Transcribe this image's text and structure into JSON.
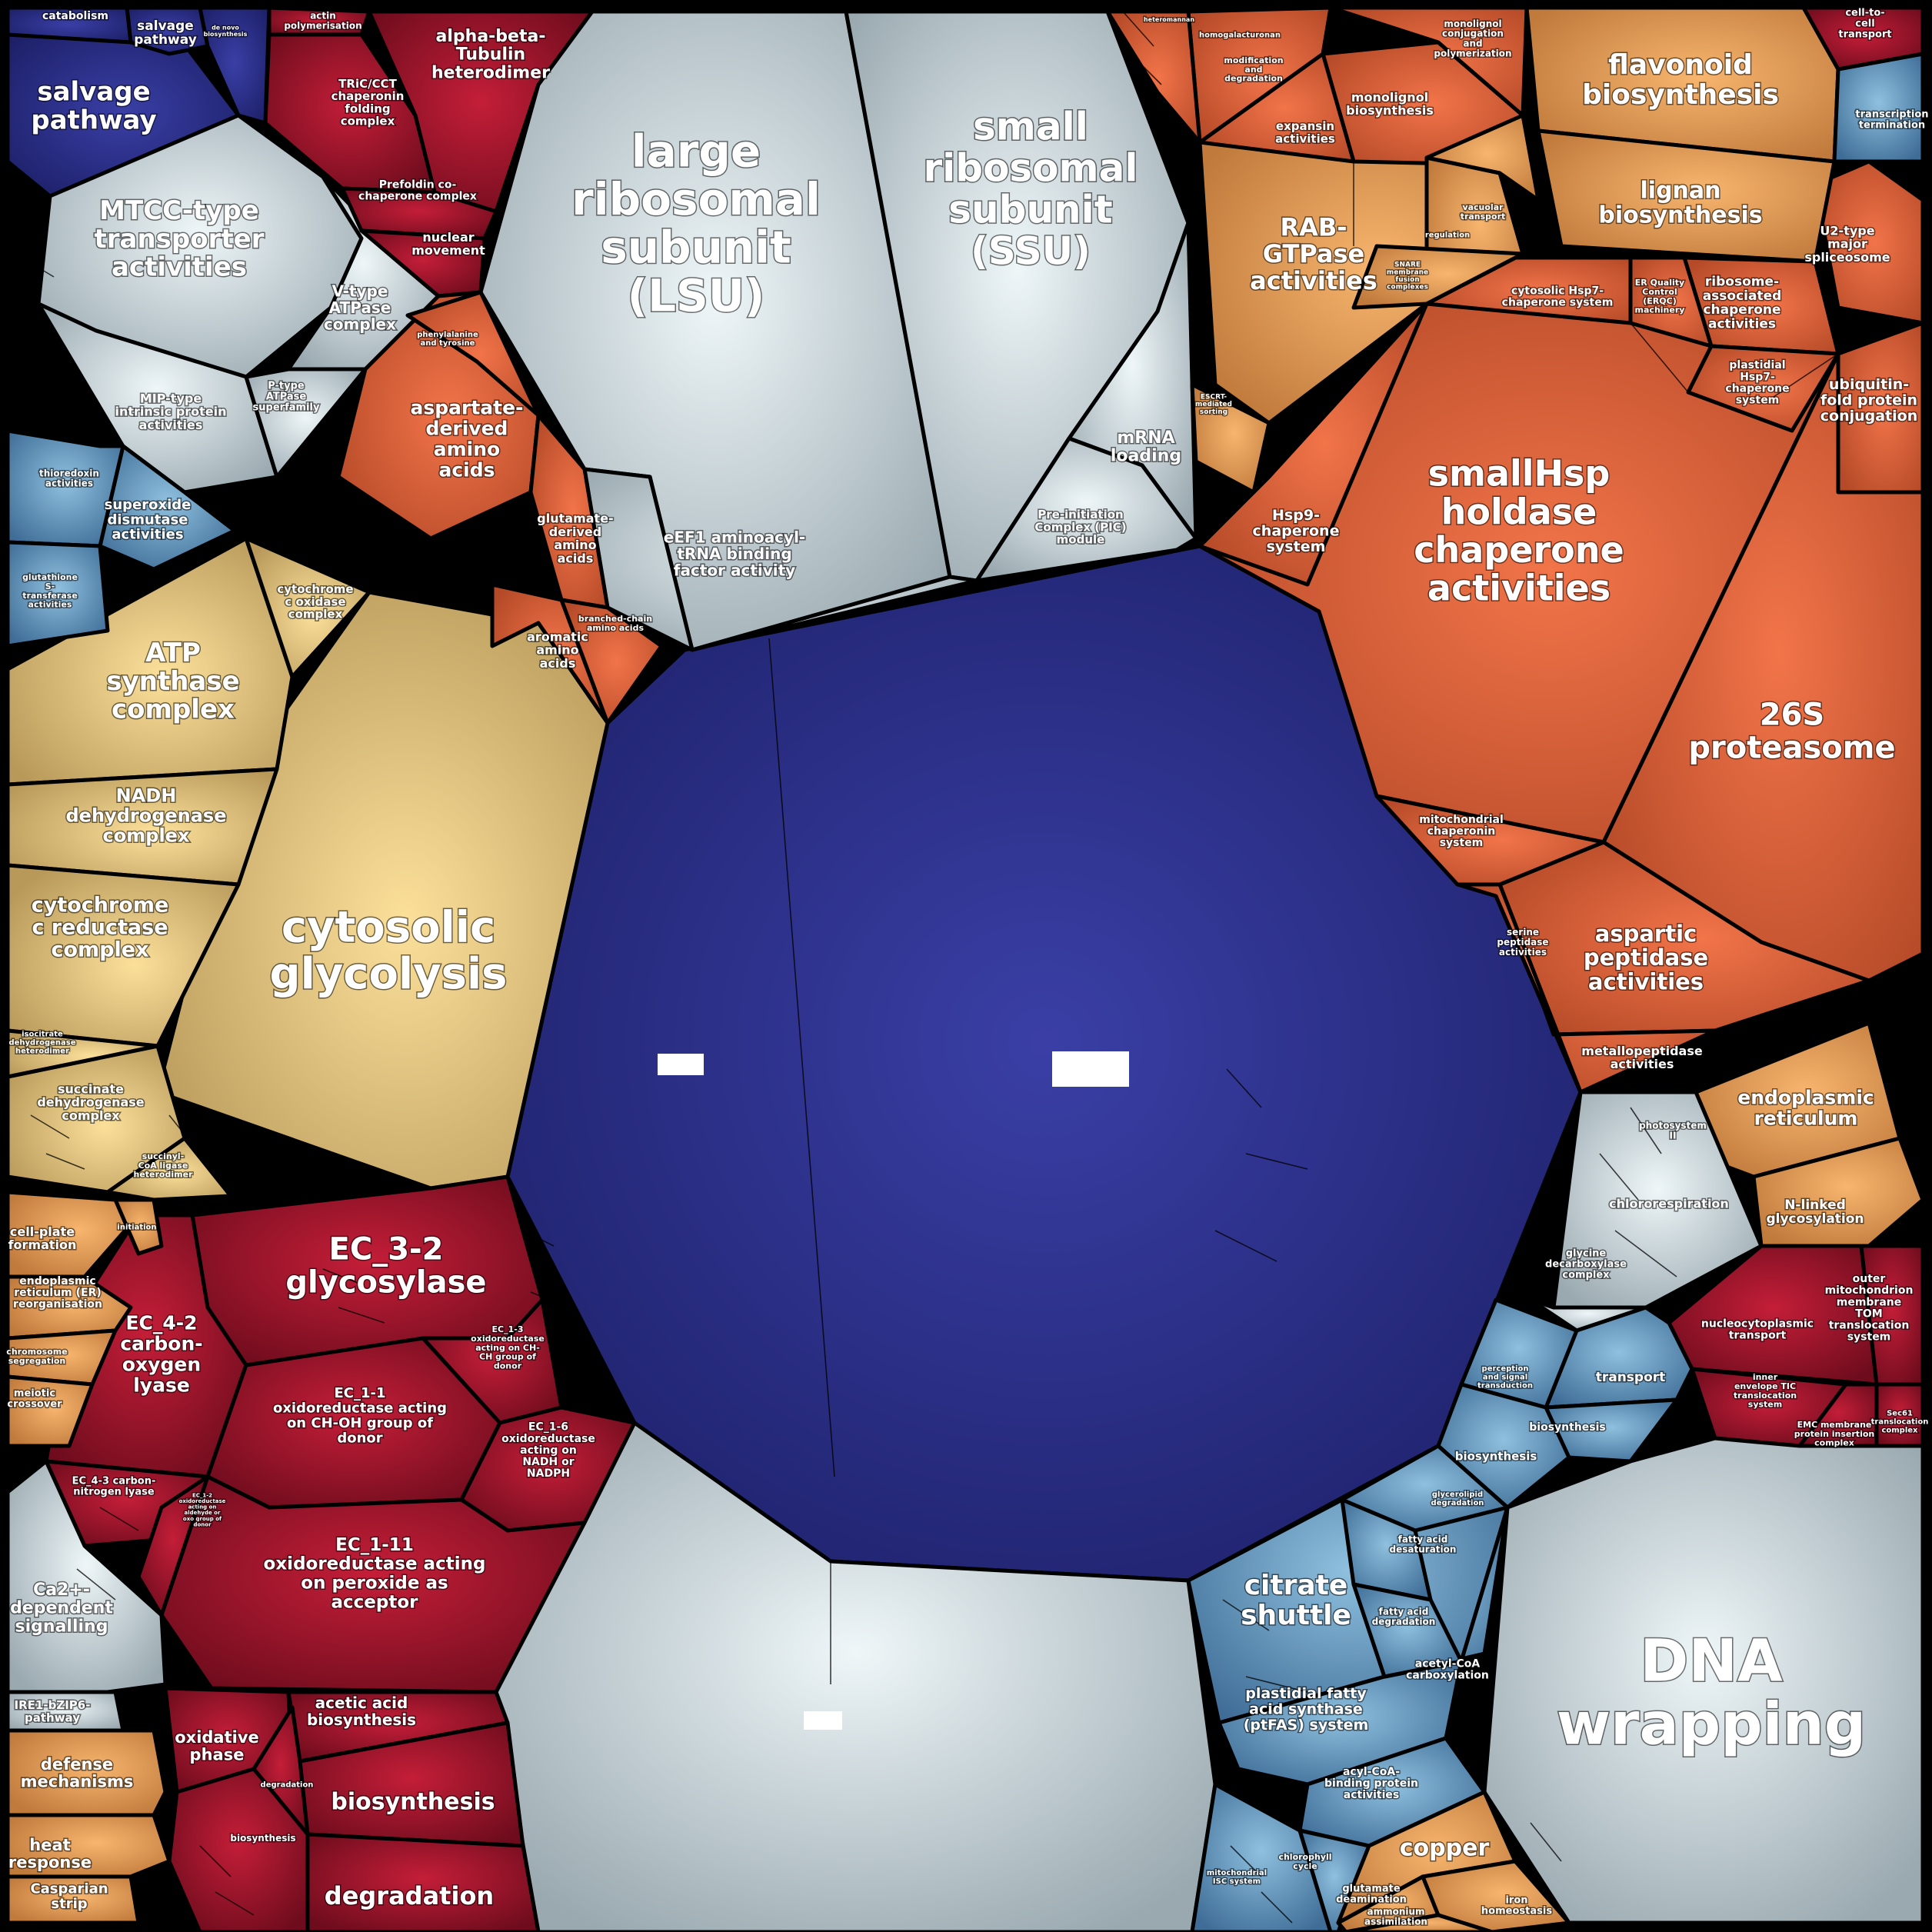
{
  "colors": {
    "navy": "#2b2f86",
    "crimson": "#a8132b",
    "orange": "#e0633c",
    "tan": "#e7a15c",
    "khaki": "#dfc27e",
    "silver": "#c9d7de",
    "steel": "#5d8db4"
  },
  "cells": [
    {
      "id": "center-blue",
      "color": "navy",
      "label": ""
    },
    {
      "id": "bottom-silver",
      "color": "silver",
      "label": ""
    },
    {
      "id": "lsu",
      "color": "silver",
      "label": "large ribosomal subunit (LSU)"
    },
    {
      "id": "ssu",
      "color": "silver",
      "label": "small ribosomal subunit (SSU)"
    },
    {
      "id": "mrna-loading",
      "color": "silver",
      "label": "mRNA loading"
    },
    {
      "id": "pic",
      "color": "silver",
      "label": "Pre-initiation Complex (PIC) module"
    },
    {
      "id": "eef1",
      "color": "silver",
      "label": "eEF1 aminoacyl-tRNA binding factor activity"
    },
    {
      "id": "cytosolic-glycolysis",
      "color": "khaki",
      "label": "cytosolic glycolysis"
    },
    {
      "id": "atp-synthase",
      "color": "khaki",
      "label": "ATP synthase complex"
    },
    {
      "id": "nadh",
      "color": "khaki",
      "label": "NADH dehydrogenase complex"
    },
    {
      "id": "cytochrome-c-red",
      "color": "khaki",
      "label": "cytochrome c reductase complex"
    },
    {
      "id": "succinate",
      "color": "khaki",
      "label": "succinate dehydrogenase complex"
    },
    {
      "id": "cyt-oxidase",
      "color": "khaki",
      "label": "cytochrome c oxidase complex"
    },
    {
      "id": "isocitrate",
      "color": "khaki",
      "label": "isocitrate dehydrogenase heterodimer"
    },
    {
      "id": "smallhsp",
      "color": "orange",
      "label": "smallHsp holdase chaperone activities"
    },
    {
      "id": "26s",
      "color": "orange",
      "label": "26S proteasome"
    },
    {
      "id": "aspartic",
      "color": "orange",
      "label": "aspartic peptidase activities"
    },
    {
      "id": "metallo",
      "color": "orange",
      "label": "metallopeptidase activities"
    },
    {
      "id": "hsp9",
      "color": "orange",
      "label": "Hsp9-chaperone system"
    },
    {
      "id": "mito-chap",
      "color": "orange",
      "label": "mitochondrial chaperonin system"
    },
    {
      "id": "serine-pep",
      "color": "orange",
      "label": "serine peptidase activities"
    },
    {
      "id": "ubiq-fold",
      "color": "orange",
      "label": "ubiquitin-fold protein conjugation"
    },
    {
      "id": "ribosome-assoc",
      "color": "orange",
      "label": "ribosome-associated chaperone activities"
    },
    {
      "id": "plastidial-hsp7",
      "color": "orange",
      "label": "plastidial Hsp7-chaperone system"
    },
    {
      "id": "cyto-hsp7",
      "color": "orange",
      "label": "cytosolic Hsp7-chaperone system"
    },
    {
      "id": "erqc",
      "color": "orange",
      "label": "ER Quality Control (ERQC) machinery"
    },
    {
      "id": "u2",
      "color": "orange",
      "label": "U2-type major spliceosome"
    },
    {
      "id": "flavonoid",
      "color": "tan",
      "label": "flavonoid biosynthesis"
    },
    {
      "id": "lignan",
      "color": "tan",
      "label": "lignan biosynthesis"
    },
    {
      "id": "rab",
      "color": "tan",
      "label": "RAB-GTPase activities"
    },
    {
      "id": "monolignol",
      "color": "orange",
      "label": "monolignol biosynthesis"
    },
    {
      "id": "monolignol-conj",
      "color": "orange",
      "label": "monolignol conjugation and polymerization"
    },
    {
      "id": "expansin",
      "color": "orange",
      "label": "expansin activities"
    },
    {
      "id": "modification",
      "color": "orange",
      "label": "modification and degradation"
    },
    {
      "id": "homogalacturonan",
      "color": "orange",
      "label": "homogalacturonan"
    },
    {
      "id": "heteromannan",
      "color": "orange",
      "label": "heteromannan"
    },
    {
      "id": "transcription-term",
      "color": "steel",
      "label": "transcription termination"
    },
    {
      "id": "cell-to-cell",
      "color": "crimson",
      "label": "cell-to-cell transport"
    },
    {
      "id": "endoplasmic",
      "color": "tan",
      "label": "endoplasmic reticulum"
    },
    {
      "id": "n-linked",
      "color": "tan",
      "label": "N-linked glycosylation"
    },
    {
      "id": "chlororespiration",
      "color": "silver",
      "label": "chlororespiration"
    },
    {
      "id": "glycine-decarb",
      "color": "silver",
      "label": "glycine decarboxylase complex"
    },
    {
      "id": "photosystem",
      "color": "silver",
      "label": "photosystem II"
    },
    {
      "id": "nucleocyto",
      "color": "crimson",
      "label": "nucleocytoplasmic transport"
    },
    {
      "id": "outer-mito",
      "color": "crimson",
      "label": "outer mitochondrion membrane TOM translocation system"
    },
    {
      "id": "inner-env",
      "color": "crimson",
      "label": "inner envelope TIC translocation system"
    },
    {
      "id": "emc",
      "color": "crimson",
      "label": "EMC membrane protein insertion complex"
    },
    {
      "id": "sec61",
      "color": "crimson",
      "label": "Sec61 translocation complex"
    },
    {
      "id": "transport",
      "color": "steel",
      "label": "transport"
    },
    {
      "id": "perception",
      "color": "steel",
      "label": "perception and signal transduction"
    },
    {
      "id": "biosynthesis-blue",
      "color": "steel",
      "label": "biosynthesis"
    },
    {
      "id": "biosynthesis-blue2",
      "color": "steel",
      "label": "biosynthesis"
    },
    {
      "id": "dna-wrapping",
      "color": "silver",
      "label": "DNA wrapping"
    },
    {
      "id": "citrate",
      "color": "steel",
      "label": "citrate shuttle"
    },
    {
      "id": "ptfas",
      "color": "steel",
      "label": "plastidial fatty acid synthase (ptFAS) system"
    },
    {
      "id": "acyl-coa",
      "color": "steel",
      "label": "acyl-CoA-binding protein activities"
    },
    {
      "id": "acetyl-coa",
      "color": "steel",
      "label": "acetyl-CoA carboxylation"
    },
    {
      "id": "fatty-acid-deg",
      "color": "steel",
      "label": "fatty acid degradation"
    },
    {
      "id": "fatty-acid-desat",
      "color": "steel",
      "label": "fatty acid desaturation"
    },
    {
      "id": "glycerolipid",
      "color": "steel",
      "label": "glycerolipid degradation"
    },
    {
      "id": "mito-isc",
      "color": "steel",
      "label": "mitochondrial ISC system"
    },
    {
      "id": "chlorophyll",
      "color": "steel",
      "label": "chlorophyll cycle"
    },
    {
      "id": "copper",
      "color": "tan",
      "label": "copper"
    },
    {
      "id": "glutamate-deam",
      "color": "tan",
      "label": "glutamate deamination"
    },
    {
      "id": "iron",
      "color": "tan",
      "label": "iron homeostasis"
    },
    {
      "id": "ammonium",
      "color": "tan",
      "label": "ammonium assimilation"
    },
    {
      "id": "ec32",
      "color": "crimson",
      "label": "EC_3-2 glycosylase"
    },
    {
      "id": "ec42",
      "color": "crimson",
      "label": "EC_4-2 carbon-oxygen lyase"
    },
    {
      "id": "ec43",
      "color": "crimson",
      "label": "EC_4-3 carbon-nitrogen lyase"
    },
    {
      "id": "ec11",
      "color": "crimson",
      "label": "EC_1-1 oxidoreductase acting on CH-OH group of donor"
    },
    {
      "id": "ec13",
      "color": "crimson",
      "label": "EC_1-3 oxidoreductase acting on CH-CH group of donor"
    },
    {
      "id": "ec16",
      "color": "crimson",
      "label": "EC_1-6 oxidoreductase acting on NADH or NADPH"
    },
    {
      "id": "ec111",
      "color": "crimson",
      "label": "EC_1-11 oxidoreductase acting on peroxide as acceptor"
    },
    {
      "id": "ec12",
      "color": "crimson",
      "label": "EC_1-2 oxidoreductase acting on aldehyde or oxo group of donor"
    },
    {
      "id": "oxidative",
      "color": "crimson",
      "label": "oxidative phase"
    },
    {
      "id": "acetic",
      "color": "crimson",
      "label": "acetic acid biosynthesis"
    },
    {
      "id": "biosynthesis-red",
      "color": "crimson",
      "label": "biosynthesis"
    },
    {
      "id": "degradation-red",
      "color": "crimson",
      "label": "degradation"
    },
    {
      "id": "degradation-small",
      "color": "crimson",
      "label": "degradation"
    },
    {
      "id": "biosynthesis-small",
      "color": "crimson",
      "label": "biosynthesis"
    },
    {
      "id": "defense",
      "color": "tan",
      "label": "defense mechanisms"
    },
    {
      "id": "heat",
      "color": "tan",
      "label": "heat response"
    },
    {
      "id": "casparian",
      "color": "tan",
      "label": "Casparian strip"
    },
    {
      "id": "ca2",
      "color": "silver",
      "label": "Ca2+-dependent signalling"
    },
    {
      "id": "ire1",
      "color": "silver",
      "label": "IRE1-bZIP6-pathway"
    },
    {
      "id": "cell-plate",
      "color": "tan",
      "label": "cell-plate formation"
    },
    {
      "id": "er-reorg",
      "color": "tan",
      "label": "endoplasmic reticulum (ER) reorganisation"
    },
    {
      "id": "chromosome-seg",
      "color": "tan",
      "label": "chromosome segregation"
    },
    {
      "id": "meiotic",
      "color": "tan",
      "label": "meiotic crossover"
    },
    {
      "id": "initiation",
      "color": "tan",
      "label": "initiation"
    },
    {
      "id": "succinyl",
      "color": "khaki",
      "label": "succinyl-CoA ligase heterodimer"
    },
    {
      "id": "salvage",
      "color": "navy",
      "label": "salvage pathway"
    },
    {
      "id": "salvage-small",
      "color": "navy",
      "label": "salvage pathway"
    },
    {
      "id": "catabolism",
      "color": "navy",
      "label": "catabolism"
    },
    {
      "id": "de-novo",
      "color": "navy",
      "label": "de novo biosynthesis"
    },
    {
      "id": "mtcc",
      "color": "silver",
      "label": "MTCC-type transporter activities"
    },
    {
      "id": "vtype",
      "color": "silver",
      "label": "V-type ATPase complex"
    },
    {
      "id": "mip",
      "color": "silver",
      "label": "MIP-type intrinsic protein activities"
    },
    {
      "id": "ptype",
      "color": "silver",
      "label": "P-type ATPase superfamily"
    },
    {
      "id": "superoxide",
      "color": "steel",
      "label": "superoxide dismutase activities"
    },
    {
      "id": "thioredoxin",
      "color": "steel",
      "label": "thioredoxin activities"
    },
    {
      "id": "glutathione",
      "color": "steel",
      "label": "glutathione S-transferase activities"
    },
    {
      "id": "alpha-beta",
      "color": "crimson",
      "label": "alpha-beta-Tubulin heterodimer"
    },
    {
      "id": "tric",
      "color": "crimson",
      "label": "TRiC/CCT chaperonin folding complex"
    },
    {
      "id": "prefoldin",
      "color": "crimson",
      "label": "Prefoldin co-chaperone complex"
    },
    {
      "id": "nuclear",
      "color": "crimson",
      "label": "nuclear movement"
    },
    {
      "id": "actin",
      "color": "crimson",
      "label": "actin polymerisation"
    },
    {
      "id": "aspartate-derived",
      "color": "orange",
      "label": "aspartate-derived amino acids"
    },
    {
      "id": "glutamate-derived",
      "color": "orange",
      "label": "glutamate-derived amino acids"
    },
    {
      "id": "aromatic",
      "color": "orange",
      "label": "aromatic amino acids"
    },
    {
      "id": "branched",
      "color": "orange",
      "label": "branched-chain amino acids"
    },
    {
      "id": "phenylalanine",
      "color": "orange",
      "label": "phenylalanine and tyrosine"
    },
    {
      "id": "regulation",
      "color": "tan",
      "label": "regulation"
    },
    {
      "id": "vacuolar",
      "color": "tan",
      "label": "vacuolar transport"
    },
    {
      "id": "snare",
      "color": "tan",
      "label": "SNARE membrane fusion complexes"
    },
    {
      "id": "escrt",
      "color": "tan",
      "label": "ESCRT-mediated sorting"
    }
  ]
}
